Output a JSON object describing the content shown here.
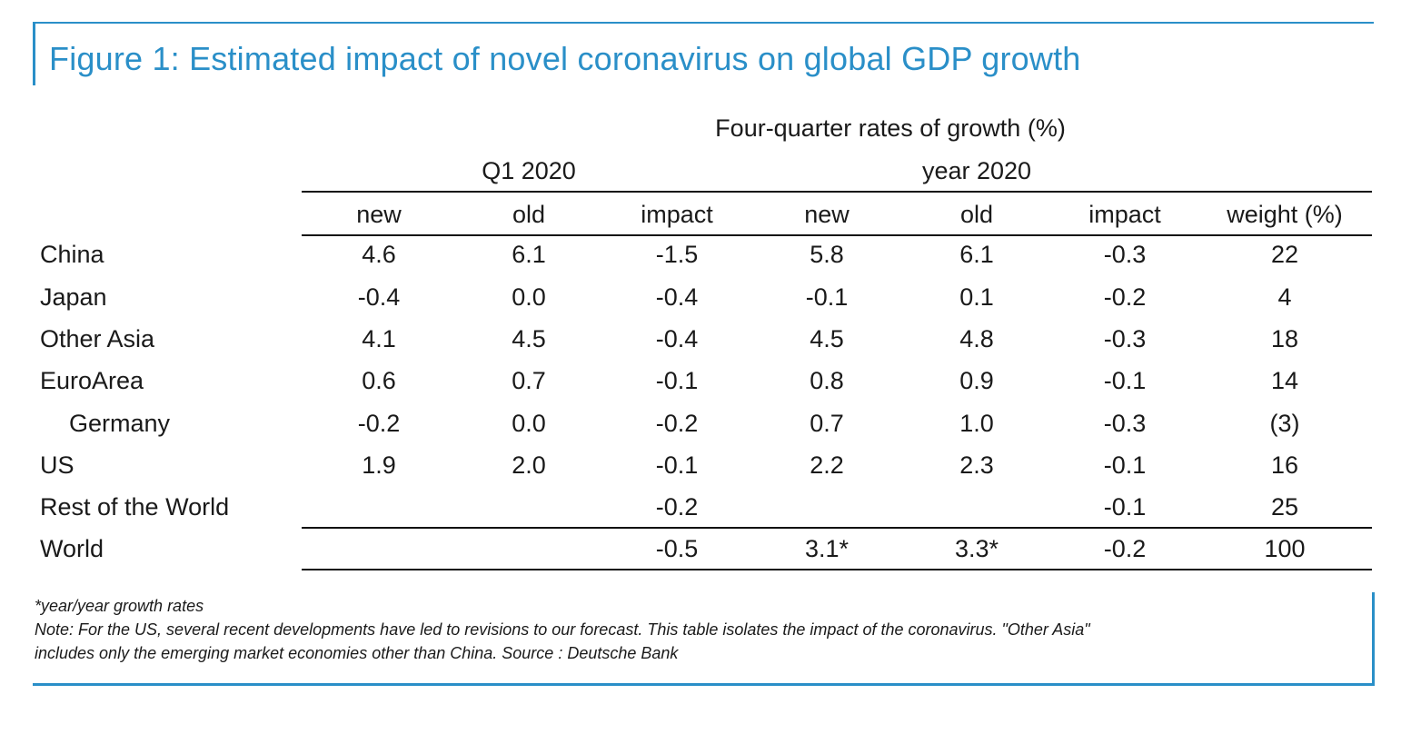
{
  "title": "Figure 1: Estimated impact of novel coronavirus on global GDP growth",
  "table": {
    "caption": "Four-quarter rates of growth (%)",
    "group_q1": "Q1 2020",
    "group_year": "year 2020",
    "columns": [
      "new",
      "old",
      "impact",
      "new",
      "old",
      "impact",
      "weight (%)"
    ],
    "rows": [
      {
        "label": "China",
        "cells": [
          "4.6",
          "6.1",
          "-1.5",
          "5.8",
          "6.1",
          "-0.3",
          "22"
        ]
      },
      {
        "label": "Japan",
        "cells": [
          "-0.4",
          "0.0",
          "-0.4",
          "-0.1",
          "0.1",
          "-0.2",
          "4"
        ]
      },
      {
        "label": "Other Asia",
        "cells": [
          "4.1",
          "4.5",
          "-0.4",
          "4.5",
          "4.8",
          "-0.3",
          "18"
        ]
      },
      {
        "label": "EuroArea",
        "cells": [
          "0.6",
          "0.7",
          "-0.1",
          "0.8",
          "0.9",
          "-0.1",
          "14"
        ]
      },
      {
        "label": "Germany",
        "cells": [
          "-0.2",
          "0.0",
          "-0.2",
          "0.7",
          "1.0",
          "-0.3",
          "(3)"
        ]
      },
      {
        "label": "US",
        "cells": [
          "1.9",
          "2.0",
          "-0.1",
          "2.2",
          "2.3",
          "-0.1",
          "16"
        ]
      },
      {
        "label": "Rest of the World",
        "cells": [
          "",
          "",
          "-0.2",
          "",
          "",
          "-0.1",
          "25"
        ]
      },
      {
        "label": "World",
        "cells": [
          "",
          "",
          "-0.5",
          "3.1*",
          "3.3*",
          "-0.2",
          "100"
        ]
      }
    ]
  },
  "notes": {
    "footnote": "*year/year growth rates",
    "line1": "Note: For the US, several recent developments have led to revisions to our forecast. This table isolates the impact of the coronavirus. \"Other Asia\"",
    "line2": "includes only the emerging market economies other than China. Source : Deutsche Bank"
  },
  "colors": {
    "accent": "#2a8fc8",
    "text": "#1a1a1a"
  }
}
